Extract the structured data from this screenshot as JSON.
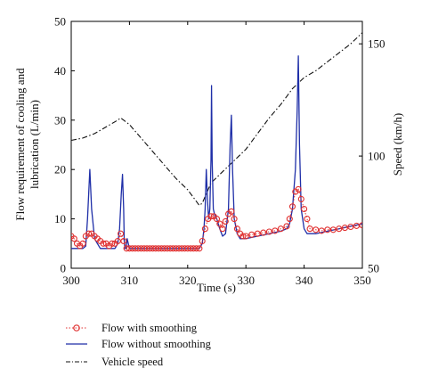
{
  "chart_data": {
    "type": "line",
    "xlabel": "Time (s)",
    "ylabel_left_line1": "Flow requirement of cooling and",
    "ylabel_left_line2": "lubrication (L/min)",
    "ylabel_right": "Speed (km/h)",
    "xlim": [
      300,
      350
    ],
    "ylim_left": [
      0,
      50
    ],
    "ylim_right": [
      50,
      160
    ],
    "x_ticks": [
      300,
      310,
      320,
      330,
      340,
      350
    ],
    "y_ticks_left": [
      0,
      10,
      20,
      30,
      40,
      50
    ],
    "y_ticks_right": [
      50,
      100,
      150
    ],
    "colors": {
      "smoothing": "#e03030",
      "without": "#1f2fa8",
      "speed": "#111111"
    },
    "series": [
      {
        "name": "Flow with smoothing",
        "axis": "left",
        "style": "dotted-circles",
        "x": [
          300,
          300.5,
          301,
          301.5,
          302,
          302.5,
          303,
          303.5,
          304,
          304.5,
          305,
          305.5,
          306,
          306.5,
          307,
          307.5,
          308,
          308.5,
          309,
          309.5,
          310,
          310.5,
          311,
          311.5,
          312,
          312.5,
          313,
          313.5,
          314,
          314.5,
          315,
          315.5,
          316,
          316.5,
          317,
          317.5,
          318,
          318.5,
          319,
          319.5,
          320,
          320.5,
          321,
          321.5,
          322,
          322.5,
          323,
          323.5,
          324,
          324.5,
          325,
          325.5,
          326,
          326.5,
          327,
          327.5,
          328,
          328.5,
          329,
          329.5,
          330,
          331,
          332,
          333,
          334,
          335,
          336,
          337,
          337.5,
          338,
          338.5,
          339,
          339.5,
          340,
          340.5,
          341,
          342,
          343,
          344,
          345,
          346,
          347,
          348,
          349,
          350
        ],
        "values": [
          6.5,
          6,
          5,
          4.5,
          5,
          6.5,
          7,
          7,
          6.5,
          6,
          5.5,
          5,
          5,
          4.5,
          5,
          5,
          5.5,
          7,
          5.5,
          4,
          4,
          4,
          4,
          4,
          4,
          4,
          4,
          4,
          4,
          4,
          4,
          4,
          4,
          4,
          4,
          4,
          4,
          4,
          4,
          4,
          4,
          4,
          4,
          4,
          4,
          5.5,
          8,
          10,
          10.5,
          10.5,
          10,
          9,
          8,
          9.5,
          11,
          11.5,
          10,
          8,
          7,
          6.5,
          6.5,
          6.8,
          7,
          7.2,
          7.4,
          7.6,
          8,
          8.5,
          10,
          12.5,
          15.5,
          16,
          14,
          12,
          10,
          8,
          7.8,
          7.6,
          7.8,
          7.8,
          8,
          8.2,
          8.4,
          8.6,
          8.7
        ]
      },
      {
        "name": "Flow without smoothing",
        "axis": "left",
        "style": "solid",
        "x": [
          300,
          300.5,
          301,
          301.5,
          302,
          302.5,
          302.8,
          303,
          303.2,
          303.5,
          304,
          304.5,
          305,
          306,
          307,
          307.5,
          308,
          308.3,
          308.6,
          308.8,
          309,
          309.1,
          309.2,
          309.4,
          309.6,
          310,
          315,
          320,
          322,
          322.5,
          322.8,
          323,
          323.2,
          323.4,
          323.6,
          323.8,
          324,
          324.1,
          324.2,
          324.4,
          324.6,
          325,
          325.5,
          326,
          326.5,
          327,
          327.3,
          327.5,
          327.7,
          328,
          328.5,
          329,
          329.5,
          330,
          332,
          334,
          336,
          337,
          337.5,
          338,
          338.5,
          338.8,
          339,
          339.2,
          339.5,
          340,
          340.5,
          341,
          342,
          344,
          346,
          348,
          350
        ],
        "values": [
          4,
          4,
          4,
          4,
          4,
          4.5,
          10,
          15,
          20,
          12,
          6,
          5,
          4,
          4,
          4,
          4,
          5,
          8,
          15,
          19,
          12,
          6,
          4,
          4,
          6,
          4,
          4,
          4,
          4,
          5,
          8,
          12,
          20,
          14,
          10,
          12,
          22,
          37,
          22,
          12,
          11,
          10,
          8,
          6.5,
          7,
          12,
          25,
          31,
          20,
          10,
          7,
          6,
          6,
          6,
          6.5,
          7,
          7.5,
          8,
          9,
          12,
          20,
          32,
          43,
          25,
          12,
          8,
          7,
          7,
          7,
          7.5,
          8,
          8.5,
          9
        ]
      },
      {
        "name": "Vehicle speed",
        "axis": "right",
        "style": "dash-dot",
        "x": [
          300,
          302,
          304,
          306,
          308,
          308.5,
          310,
          312,
          314,
          316,
          318,
          320,
          322,
          322.5,
          324,
          326,
          328,
          330,
          332,
          334,
          336,
          338,
          340,
          342,
          344,
          346,
          348,
          350
        ],
        "values": [
          107,
          108,
          110,
          113,
          116,
          117,
          114,
          108,
          102,
          96,
          90,
          85,
          78,
          79,
          88,
          93,
          98,
          103,
          110,
          117,
          123,
          130,
          135,
          138,
          142,
          146,
          150,
          155
        ]
      }
    ],
    "legend": {
      "position": "bottom",
      "entries": [
        "Flow with smoothing",
        "Flow without smoothing",
        "Vehicle speed"
      ]
    }
  }
}
